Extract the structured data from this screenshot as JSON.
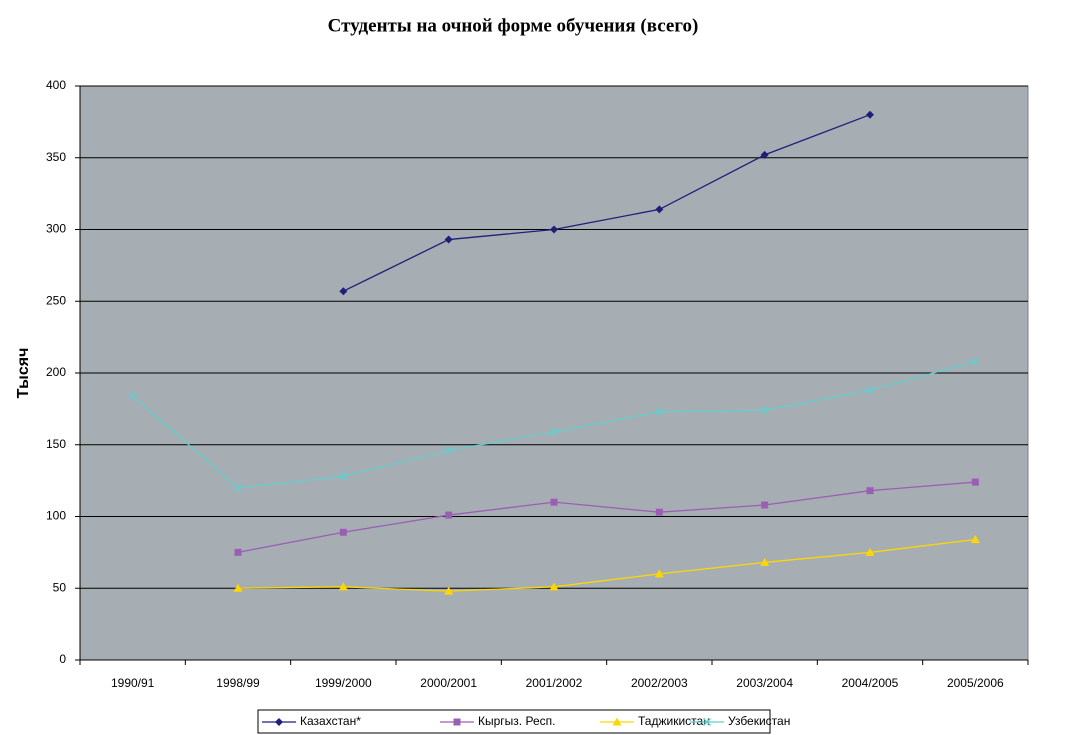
{
  "chart_data": {
    "type": "line",
    "title": "Студенты на очной форме обучения (всего)",
    "y_label": "Тысяч",
    "categories": [
      "1990/91",
      "1998/99",
      "1999/2000",
      "2000/2001",
      "2001/2002",
      "2002/2003",
      "2003/2004",
      "2004/2005",
      "2005/2006"
    ],
    "series": [
      {
        "name": "Казахстан*",
        "color": "#1f1f7a",
        "marker": "diamond",
        "values": [
          null,
          null,
          257,
          293,
          300,
          314,
          352,
          380,
          null
        ]
      },
      {
        "name": "Кыргыз. Респ.",
        "color": "#9a5fb4",
        "marker": "square",
        "values": [
          null,
          75,
          89,
          101,
          110,
          103,
          108,
          118,
          124
        ]
      },
      {
        "name": "Таджикистан",
        "color": "#ffd700",
        "marker": "triangle",
        "values": [
          null,
          50,
          51,
          48,
          51,
          60,
          68,
          75,
          84
        ]
      },
      {
        "name": "Узбекистан",
        "color": "#66cccc",
        "marker": "x",
        "values": [
          184,
          120,
          128,
          146,
          159,
          173,
          174,
          188,
          208
        ]
      }
    ],
    "ylim": [
      0,
      400
    ],
    "yticks": [
      0,
      50,
      100,
      150,
      200,
      250,
      300,
      350,
      400
    ],
    "grid": true,
    "plot_background": "#a6aeb3",
    "legend": "bottom"
  }
}
